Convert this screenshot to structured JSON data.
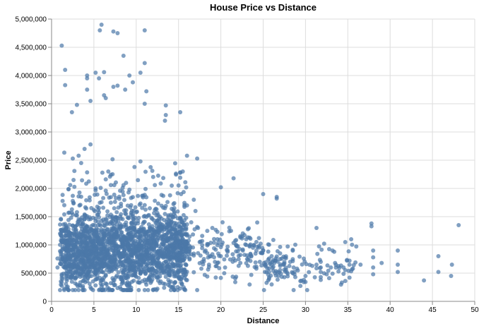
{
  "chart_data": {
    "type": "scatter",
    "title": "House Price vs Distance",
    "xlabel": "Distance",
    "ylabel": "Price",
    "xlim": [
      0,
      50
    ],
    "ylim": [
      0,
      5000000
    ],
    "x_ticks": [
      0,
      5,
      10,
      15,
      20,
      25,
      30,
      35,
      40,
      45,
      50
    ],
    "x_tick_labels": [
      "0",
      "5",
      "10",
      "15",
      "20",
      "25",
      "30",
      "35",
      "40",
      "45",
      "50"
    ],
    "y_ticks": [
      0,
      500000,
      1000000,
      1500000,
      2000000,
      2500000,
      3000000,
      3500000,
      4000000,
      4500000,
      5000000
    ],
    "y_tick_labels": [
      "0",
      "500,000",
      "1,000,000",
      "1,500,000",
      "2,000,000",
      "2,500,000",
      "3,000,000",
      "3,500,000",
      "4,000,000",
      "4,500,000",
      "5,000,000"
    ],
    "grid": true,
    "point_color": "#4c78a8",
    "series": [
      {
        "points": [
          [
            0.7,
            600000
          ],
          [
            0.7,
            760000
          ],
          [
            1.2,
            4530000
          ],
          [
            1.6,
            4100000
          ],
          [
            1.6,
            3830000
          ],
          [
            2.4,
            3350000
          ],
          [
            2.6,
            2150000
          ],
          [
            3.0,
            3480000
          ],
          [
            3.2,
            2580000
          ],
          [
            3.5,
            2450000
          ],
          [
            4.2,
            3950000
          ],
          [
            4.2,
            4000000
          ],
          [
            4.2,
            3750000
          ],
          [
            4.6,
            3550000
          ],
          [
            4.6,
            2780000
          ],
          [
            5.2,
            4050000
          ],
          [
            5.6,
            3950000
          ],
          [
            5.7,
            4800000
          ],
          [
            5.9,
            4900000
          ],
          [
            6.2,
            4060000
          ],
          [
            6.2,
            3650000
          ],
          [
            6.4,
            3600000
          ],
          [
            7.3,
            4780000
          ],
          [
            7.3,
            3800000
          ],
          [
            7.8,
            4750000
          ],
          [
            7.8,
            3820000
          ],
          [
            8.5,
            4350000
          ],
          [
            8.7,
            3750000
          ],
          [
            9.2,
            4000000
          ],
          [
            9.6,
            3880000
          ],
          [
            10.5,
            4050000
          ],
          [
            11.0,
            4800000
          ],
          [
            11.0,
            4220000
          ],
          [
            11.2,
            3720000
          ],
          [
            11.0,
            3500000
          ],
          [
            13.5,
            3470000
          ],
          [
            13.5,
            3300000
          ],
          [
            15.2,
            3350000
          ],
          [
            13.4,
            3200000
          ],
          [
            16.0,
            2580000
          ],
          [
            17.2,
            2530000
          ],
          [
            20.0,
            2020000
          ],
          [
            21.5,
            2180000
          ],
          [
            25.0,
            1900000
          ],
          [
            26.6,
            1850000
          ],
          [
            26.6,
            1820000
          ],
          [
            31.3,
            1300000
          ],
          [
            34.7,
            1050000
          ],
          [
            35.4,
            1100000
          ],
          [
            37.8,
            1380000
          ],
          [
            37.8,
            1330000
          ],
          [
            40.9,
            900000
          ],
          [
            45.7,
            800000
          ],
          [
            47.3,
            650000
          ],
          [
            48.1,
            1350000
          ],
          [
            44.0,
            370000
          ],
          [
            45.7,
            520000
          ],
          [
            47.2,
            450000
          ],
          [
            40.9,
            650000
          ],
          [
            40.9,
            520000
          ],
          [
            39.0,
            680000
          ],
          [
            38.0,
            900000
          ],
          [
            38.0,
            780000
          ],
          [
            38.0,
            600000
          ],
          [
            38.0,
            480000
          ],
          [
            36.5,
            650000
          ],
          [
            35.6,
            580000
          ],
          [
            35.2,
            720000
          ],
          [
            35.2,
            650000
          ],
          [
            35.2,
            420000
          ],
          [
            34.5,
            600000
          ],
          [
            33.9,
            530000
          ],
          [
            33.5,
            680000
          ],
          [
            33.0,
            600000
          ],
          [
            32.5,
            480000
          ],
          [
            31.8,
            700000
          ],
          [
            31.8,
            600000
          ],
          [
            31.8,
            520000
          ],
          [
            31.8,
            430000
          ],
          [
            31.8,
            380000
          ],
          [
            31.3,
            650000
          ],
          [
            30.0,
            450000
          ],
          [
            29.8,
            380000
          ],
          [
            29.8,
            340000
          ],
          [
            29.0,
            580000
          ],
          [
            28.6,
            600000
          ],
          [
            28.2,
            700000
          ],
          [
            27.5,
            560000
          ],
          [
            27.0,
            850000
          ],
          [
            26.4,
            720000
          ],
          [
            26.0,
            800000
          ],
          [
            25.3,
            620000
          ],
          [
            25.0,
            900000
          ],
          [
            24.6,
            700000
          ],
          [
            24.2,
            580000
          ],
          [
            23.8,
            950000
          ],
          [
            23.3,
            780000
          ],
          [
            23.0,
            1100000
          ],
          [
            22.6,
            900000
          ],
          [
            22.3,
            680000
          ],
          [
            21.8,
            1000000
          ],
          [
            21.5,
            760000
          ],
          [
            21.2,
            1250000
          ],
          [
            20.8,
            900000
          ],
          [
            20.5,
            600000
          ],
          [
            20.2,
            1400000
          ],
          [
            20.0,
            800000
          ],
          [
            19.6,
            1100000
          ],
          [
            19.3,
            700000
          ],
          [
            19.0,
            1300000
          ],
          [
            18.6,
            650000
          ],
          [
            18.2,
            900000
          ],
          [
            18.0,
            750000
          ],
          [
            17.7,
            580000
          ],
          [
            17.5,
            1050000
          ],
          [
            17.3,
            1300000
          ],
          [
            17.0,
            1600000
          ],
          [
            16.8,
            1800000
          ],
          [
            16.5,
            1400000
          ],
          [
            16.3,
            980000
          ],
          [
            16.0,
            1700000
          ],
          [
            15.8,
            1200000
          ],
          [
            15.5,
            2300000
          ],
          [
            15.3,
            1900000
          ],
          [
            15.1,
            760000
          ],
          [
            14.8,
            1150000
          ],
          [
            14.5,
            1650000
          ],
          [
            14.2,
            2050000
          ],
          [
            14.0,
            1350000
          ],
          [
            13.8,
            900000
          ]
        ]
      }
    ]
  }
}
